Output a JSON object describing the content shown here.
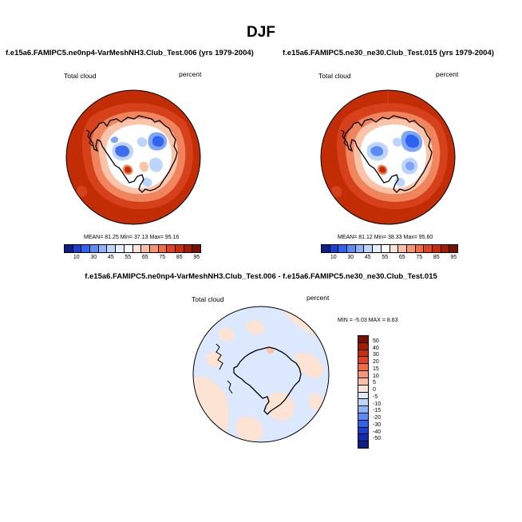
{
  "figure": {
    "title": "DJF"
  },
  "panels": [
    {
      "title": "f.e15a6.FAMIPC5.ne0np4-VarMeshNH3.Club_Test.006 (yrs 1979-2004)",
      "left_label": "Total cloud",
      "right_label": "percent",
      "stats": "MEAN= 81.25  Min= 37.13  Max= 95.16"
    },
    {
      "title": "f.e15a6.FAMIPC5.ne30_ne30.Club_Test.015 (yrs 1979-2004)",
      "left_label": "Total cloud",
      "right_label": "percent",
      "stats": "MEAN= 81.12  Min= 38.33  Max= 95.60"
    },
    {
      "title": "f.e15a6.FAMIPC5.ne0np4-VarMeshNH3.Club_Test.006 - f.e15a6.FAMIPC5.ne30_ne30.Club_Test.015",
      "left_label": "Total cloud",
      "right_label": "percent",
      "stats": "MIN =  -5.03 MAX =   8.63"
    }
  ],
  "colorbar_horizontal": {
    "labels": [
      "10",
      "30",
      "45",
      "55",
      "65",
      "75",
      "85",
      "95"
    ],
    "colors": [
      "#0a1e8c",
      "#1c3fd2",
      "#2f62ee",
      "#5b8cf5",
      "#8fb3fa",
      "#bdd4fc",
      "#e3eefe",
      "#ffffff",
      "#ffe3d6",
      "#fcbfa4",
      "#f79570",
      "#f16b43",
      "#e4411f",
      "#c92d0c",
      "#a31d04",
      "#7a1100"
    ]
  },
  "colorbar_vertical": {
    "labels": [
      "50",
      "40",
      "30",
      "20",
      "15",
      "10",
      "5",
      "0",
      "-5",
      "-10",
      "-15",
      "-20",
      "-30",
      "-40",
      "-50"
    ],
    "colors": [
      "#7a1100",
      "#a31d04",
      "#c92d0c",
      "#e4411f",
      "#f16b43",
      "#f79570",
      "#fcbfa4",
      "#ffe3d6",
      "#dfeafe",
      "#bdd4fc",
      "#8fb3fa",
      "#5b8cf5",
      "#2f62ee",
      "#1c3fd2",
      "#0f2cb0",
      "#0a1e8c"
    ]
  },
  "map_colors": {
    "ocean_high": "#c22d05",
    "ring": "#d6401a",
    "coast_mid": "#f0845c",
    "coast_light": "#fbc3a7",
    "continent": "#ffffff",
    "low_light": "#bdd4fc",
    "low_mid": "#7da6f6",
    "low_dark": "#3d6ded",
    "diff_neg": "#dbe8fd",
    "diff_pos": "#fde3d3"
  }
}
